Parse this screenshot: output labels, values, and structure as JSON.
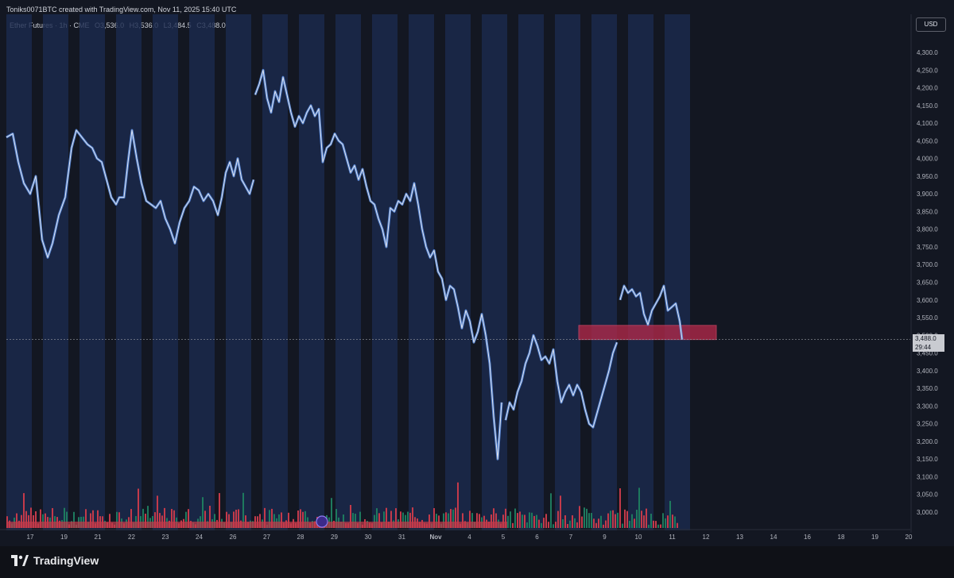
{
  "header": {
    "text": "Toniks0071BTC created with TradingView.com, Nov 11, 2025 15:40 UTC"
  },
  "legend": {
    "symbol": "Ether Futures · 1h · CME",
    "open": "O3,536.0",
    "high": "H3,536.0",
    "low": "L3,484.5",
    "close": "C3,488.0"
  },
  "currency": "USD",
  "last_price": {
    "value": "3,488.0",
    "countdown": "29:44"
  },
  "brand": "TradingView",
  "colors": {
    "background": "#131722",
    "session_band": "#1b2a4f",
    "candle_up": "#5b8fe6",
    "candle_down": "#e0e3eb",
    "zone": "#b7294a",
    "volume_up": "#1e7a5e",
    "volume_down": "#c43a4a"
  },
  "chart_data": {
    "type": "line",
    "x_tick_labels": [
      "17",
      "19",
      "21",
      "22",
      "23",
      "24",
      "26",
      "27",
      "28",
      "29",
      "30",
      "31",
      "Nov",
      "4",
      "5",
      "6",
      "7",
      "9",
      "10",
      "11",
      "12",
      "13",
      "14",
      "16",
      "18",
      "19",
      "20"
    ],
    "y_tick_labels": [
      "4,300.0",
      "4,250.0",
      "4,200.0",
      "4,150.0",
      "4,100.0",
      "4,050.0",
      "4,000.0",
      "3,950.0",
      "3,900.0",
      "3,850.0",
      "3,800.0",
      "3,750.0",
      "3,700.0",
      "3,650.0",
      "3,600.0",
      "3,550.0",
      "3,500.0",
      "3,450.0",
      "3,400.0",
      "3,350.0",
      "3,300.0",
      "3,250.0",
      "3,200.0",
      "3,150.0",
      "3,100.0",
      "3,050.0",
      "3,000.0"
    ],
    "y_range": [
      2975,
      4330
    ],
    "x_range": [
      0,
      1000
    ],
    "series": [
      {
        "x": [
          0,
          8,
          15,
          22,
          30,
          37,
          45,
          52,
          58,
          66,
          74,
          82,
          88,
          95,
          102,
          108,
          114,
          120,
          126,
          132,
          138,
          142,
          148,
          153,
          158,
          164,
          170,
          176,
          182,
          188,
          194,
          200,
          206,
          212,
          218,
          224,
          230,
          236,
          242,
          248,
          254,
          260,
          266,
          271,
          276,
          281,
          286,
          291,
          296,
          301,
          306,
          311
        ],
        "y": [
          4060,
          4070,
          3990,
          3930,
          3900,
          3950,
          3770,
          3720,
          3760,
          3840,
          3890,
          4030,
          4080,
          4060,
          4040,
          4030,
          4000,
          3990,
          3940,
          3890,
          3870,
          3890,
          3890,
          3990,
          4080,
          4000,
          3930,
          3880,
          3870,
          3860,
          3880,
          3830,
          3800,
          3760,
          3820,
          3860,
          3880,
          3920,
          3910,
          3880,
          3900,
          3880,
          3840,
          3890,
          3960,
          3990,
          3950,
          4000,
          3940,
          3920,
          3900,
          3940
        ]
      },
      {
        "x": [
          313,
          318,
          323,
          328,
          333,
          338,
          343,
          348,
          353,
          358,
          363,
          368,
          373,
          378,
          383,
          388,
          393,
          398,
          403,
          408,
          413,
          418,
          423,
          428,
          433,
          438,
          443,
          448,
          453,
          458,
          463,
          468,
          473,
          478,
          483,
          488,
          493,
          498,
          503,
          508,
          513,
          518,
          523,
          528,
          533,
          538,
          543,
          548,
          553,
          558,
          563,
          568,
          573,
          578,
          583,
          588,
          593,
          598,
          603,
          608,
          613,
          618,
          623
        ],
        "y": [
          4180,
          4210,
          4250,
          4170,
          4130,
          4190,
          4160,
          4230,
          4180,
          4130,
          4090,
          4120,
          4100,
          4130,
          4150,
          4120,
          4140,
          3990,
          4030,
          4040,
          4070,
          4050,
          4040,
          4000,
          3960,
          3980,
          3940,
          3970,
          3920,
          3880,
          3870,
          3830,
          3800,
          3750,
          3860,
          3850,
          3880,
          3870,
          3900,
          3880,
          3930,
          3870,
          3800,
          3750,
          3720,
          3740,
          3680,
          3660,
          3600,
          3640,
          3630,
          3580,
          3520,
          3570,
          3540,
          3480,
          3510,
          3560,
          3500,
          3420,
          3270,
          3150,
          3310
        ]
      },
      {
        "x": [
          628,
          633,
          638,
          643,
          648,
          653,
          658,
          663,
          668,
          673,
          678,
          683,
          688,
          693,
          698,
          703,
          708,
          713,
          718,
          723,
          728,
          733,
          738,
          743,
          748,
          753,
          758,
          763,
          768
        ],
        "y": [
          3260,
          3310,
          3290,
          3340,
          3370,
          3420,
          3450,
          3500,
          3470,
          3430,
          3440,
          3420,
          3460,
          3370,
          3310,
          3340,
          3360,
          3330,
          3360,
          3340,
          3290,
          3250,
          3240,
          3280,
          3320,
          3360,
          3400,
          3450,
          3480
        ]
      },
      {
        "x": [
          772,
          777,
          782,
          787,
          792,
          797,
          802,
          807,
          812,
          817,
          822,
          827,
          832,
          837,
          842,
          847,
          850
        ],
        "y": [
          3600,
          3640,
          3620,
          3630,
          3610,
          3620,
          3560,
          3530,
          3570,
          3590,
          3610,
          3640,
          3570,
          3580,
          3590,
          3540,
          3488
        ]
      }
    ],
    "annotations": [
      {
        "type": "zone",
        "x_start": 720,
        "x_end": 893,
        "y_low": 3488,
        "y_high": 3528
      },
      {
        "type": "price-line",
        "y": 3488
      }
    ]
  }
}
